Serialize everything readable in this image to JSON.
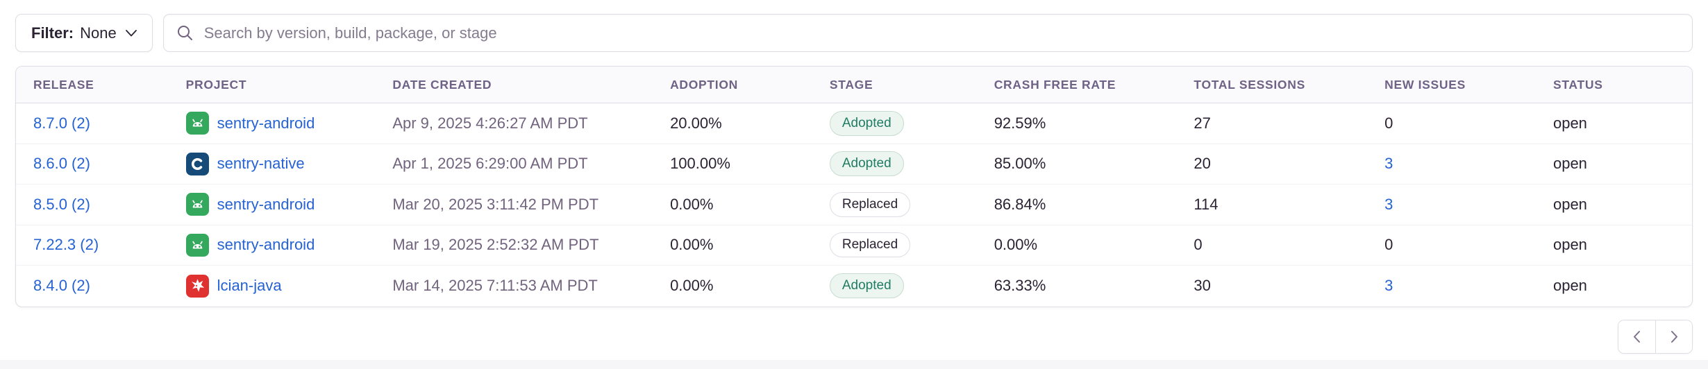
{
  "colors": {
    "link_blue": "#2562d4",
    "adopted_green": "#207c63",
    "header_text": "#6f6287",
    "muted_date_text": "#71637e",
    "body_text": "#2b2233",
    "border": "#e0dce5",
    "android_icon_green": "#34a85c",
    "native_icon_navy": "#164b79",
    "java_icon_red": "#e03131"
  },
  "toolbar": {
    "filter_label": "Filter:",
    "filter_value": "None",
    "search_placeholder": "Search by version, build, package, or stage"
  },
  "table": {
    "columns": [
      "RELEASE",
      "PROJECT",
      "DATE CREATED",
      "ADOPTION",
      "STAGE",
      "CRASH FREE RATE",
      "TOTAL SESSIONS",
      "NEW ISSUES",
      "STATUS"
    ],
    "rows": [
      {
        "release": "8.7.0 (2)",
        "project": "sentry-android",
        "project_icon": "android-icon",
        "date_created": "Apr 9, 2025 4:26:27 AM PDT",
        "adoption": "20.00%",
        "stage": "Adopted",
        "crash_free_rate": "92.59%",
        "total_sessions": "27",
        "new_issues": "0",
        "new_issues_link": false,
        "status": "open"
      },
      {
        "release": "8.6.0 (2)",
        "project": "sentry-native",
        "project_icon": "c-icon",
        "date_created": "Apr 1, 2025 6:29:00 AM PDT",
        "adoption": "100.00%",
        "stage": "Adopted",
        "crash_free_rate": "85.00%",
        "total_sessions": "20",
        "new_issues": "3",
        "new_issues_link": true,
        "status": "open"
      },
      {
        "release": "8.5.0 (2)",
        "project": "sentry-android",
        "project_icon": "android-icon",
        "date_created": "Mar 20, 2025 3:11:42 PM PDT",
        "adoption": "0.00%",
        "stage": "Replaced",
        "crash_free_rate": "86.84%",
        "total_sessions": "114",
        "new_issues": "3",
        "new_issues_link": true,
        "status": "open"
      },
      {
        "release": "7.22.3 (2)",
        "project": "sentry-android",
        "project_icon": "android-icon",
        "date_created": "Mar 19, 2025 2:52:32 AM PDT",
        "adoption": "0.00%",
        "stage": "Replaced",
        "crash_free_rate": "0.00%",
        "total_sessions": "0",
        "new_issues": "0",
        "new_issues_link": false,
        "status": "open"
      },
      {
        "release": "8.4.0 (2)",
        "project": "lcian-java",
        "project_icon": "mascot-icon",
        "date_created": "Mar 14, 2025 7:11:53 AM PDT",
        "adoption": "0.00%",
        "stage": "Adopted",
        "crash_free_rate": "63.33%",
        "total_sessions": "30",
        "new_issues": "3",
        "new_issues_link": true,
        "status": "open"
      }
    ]
  },
  "pagination": {
    "prev_icon": "chevron-left-icon",
    "next_icon": "chevron-right-icon"
  }
}
